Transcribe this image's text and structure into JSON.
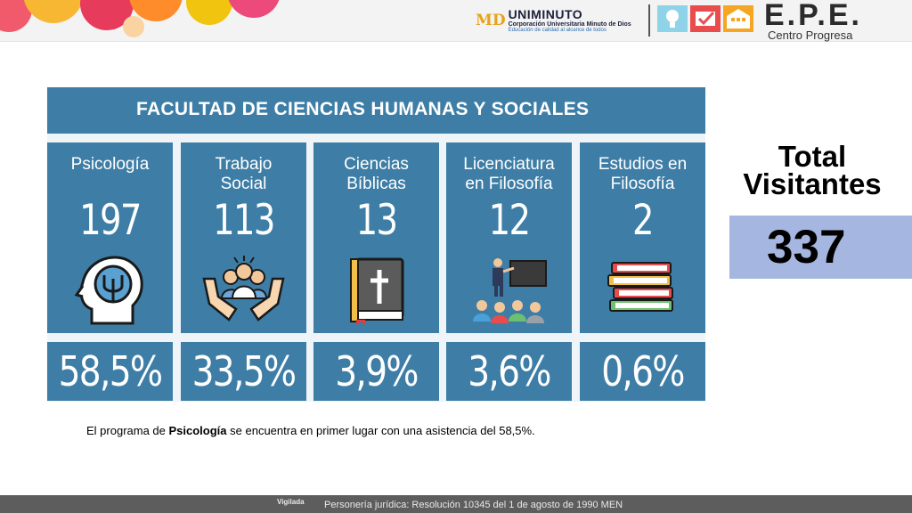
{
  "header": {
    "uniminuto_mark": "MD",
    "uniminuto_name": "UNIMINUTO",
    "uniminuto_line2": "Corporación Universitaria Minuto de Dios",
    "uniminuto_line3": "Educación de calidad al alcance de todos",
    "epe_title": "E.P.E.",
    "epe_subtitle": "Centro Progresa"
  },
  "faculty": {
    "title": "FACULTAD DE CIENCIAS HUMANAS Y SOCIALES",
    "programs": [
      {
        "name": "Psicología",
        "count": "197",
        "percent": "58,5%",
        "icon": "head-brain-icon"
      },
      {
        "name": "Trabajo\nSocial",
        "count": "113",
        "percent": "33,5%",
        "icon": "community-hands-icon"
      },
      {
        "name": "Ciencias\nBíblicas",
        "count": "13",
        "percent": "3,9%",
        "icon": "bible-icon"
      },
      {
        "name": "Licenciatura\nen Filosofía",
        "count": "12",
        "percent": "3,6%",
        "icon": "teacher-class-icon"
      },
      {
        "name": "Estudios en\nFilosofía",
        "count": "2",
        "percent": "0,6%",
        "icon": "books-stack-icon"
      }
    ]
  },
  "total": {
    "label": "Total\nVisitantes",
    "value": "337"
  },
  "summary": {
    "before": "El programa de ",
    "bold": "Psicología",
    "after": " se encuentra en primer lugar con una asistencia del 58,5%."
  },
  "footer": {
    "vigilada": "Vigilada",
    "resolution": "Personería jurídica: Resolución 10345 del 1 de agosto de 1990 MEN"
  },
  "colors": {
    "card_blue": "#3e7ea6",
    "total_box": "#a5b6e0"
  }
}
